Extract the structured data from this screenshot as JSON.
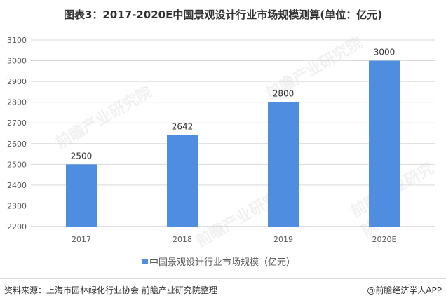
{
  "chart_data": {
    "type": "bar",
    "title": "图表3：2017-2020E中国景观设计行业市场规模测算(单位：亿元)",
    "categories": [
      "2017",
      "2018",
      "2019",
      "2020E"
    ],
    "series": [
      {
        "name": "中国景观设计行业市场规模（亿元）",
        "values": [
          2500,
          2642,
          2800,
          3000
        ],
        "color": "#4f8de0"
      }
    ],
    "ylim": [
      2200,
      3100
    ],
    "yticks": [
      2200,
      2300,
      2400,
      2500,
      2600,
      2700,
      2800,
      2900,
      3000,
      3100
    ],
    "grid": true,
    "legend": "bottom"
  },
  "footer": {
    "source": "资料来源：上海市园林绿化行业协会 前瞻产业研究院整理",
    "brand": "@前瞻经济学人APP"
  },
  "watermark": {
    "text": "前瞻产业研究院"
  }
}
